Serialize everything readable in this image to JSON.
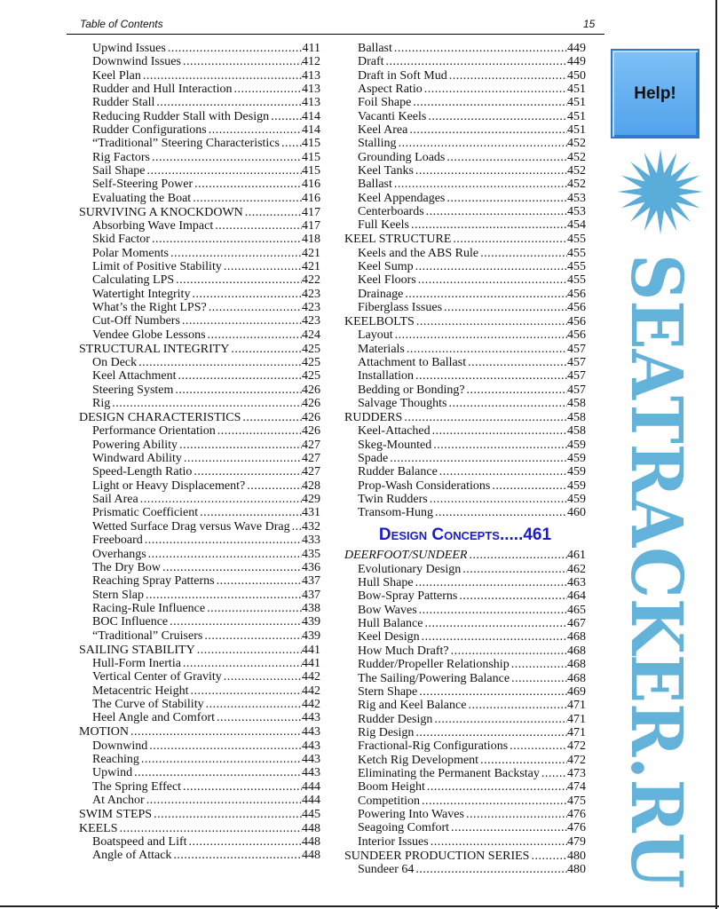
{
  "header": {
    "title": "Table of Contents",
    "page_number": "15"
  },
  "help_button": {
    "label": "Help!"
  },
  "watermark": {
    "text": "SEATRACKER.RU",
    "color": "#3d9fd2"
  },
  "left_column": [
    {
      "level": 1,
      "title": "Upwind Issues",
      "page": "411"
    },
    {
      "level": 1,
      "title": "Downwind Issues",
      "page": "412"
    },
    {
      "level": 1,
      "title": "Keel Plan",
      "page": "413"
    },
    {
      "level": 1,
      "title": "Rudder and Hull Interaction",
      "page": "413"
    },
    {
      "level": 1,
      "title": "Rudder Stall",
      "page": "413"
    },
    {
      "level": 1,
      "title": "Reducing Rudder Stall with Design",
      "page": "414"
    },
    {
      "level": 1,
      "title": "Rudder Configurations",
      "page": "414"
    },
    {
      "level": 1,
      "title": "“Traditional” Steering Characteristics",
      "page": "415"
    },
    {
      "level": 1,
      "title": "Rig Factors",
      "page": "415"
    },
    {
      "level": 1,
      "title": "Sail Shape",
      "page": "415"
    },
    {
      "level": 1,
      "title": "Self-Steering Power",
      "page": "416"
    },
    {
      "level": 1,
      "title": "Evaluating the Boat",
      "page": "416"
    },
    {
      "level": 0,
      "title": "SURVIVING A KNOCKDOWN",
      "page": "417"
    },
    {
      "level": 1,
      "title": "Absorbing Wave Impact",
      "page": "417"
    },
    {
      "level": 1,
      "title": "Skid Factor",
      "page": "418"
    },
    {
      "level": 1,
      "title": "Polar Moments",
      "page": "421"
    },
    {
      "level": 1,
      "title": "Limit of Positive Stability",
      "page": "421"
    },
    {
      "level": 1,
      "title": "Calculating LPS",
      "page": "422"
    },
    {
      "level": 1,
      "title": "Watertight Integrity",
      "page": "423"
    },
    {
      "level": 1,
      "title": "What’s the Right LPS?",
      "page": "423"
    },
    {
      "level": 1,
      "title": "Cut-Off Numbers",
      "page": "423"
    },
    {
      "level": 1,
      "title": "Vendee Globe Lessons",
      "page": "424"
    },
    {
      "level": 0,
      "title": "STRUCTURAL INTEGRITY",
      "page": "425"
    },
    {
      "level": 1,
      "title": "On Deck",
      "page": "425"
    },
    {
      "level": 1,
      "title": "Keel Attachment",
      "page": "425"
    },
    {
      "level": 1,
      "title": "Steering System",
      "page": "426"
    },
    {
      "level": 1,
      "title": "Rig",
      "page": "426"
    },
    {
      "level": 0,
      "title": "DESIGN CHARACTERISTICS",
      "page": "426"
    },
    {
      "level": 1,
      "title": "Performance Orientation",
      "page": "426"
    },
    {
      "level": 1,
      "title": "Powering Ability",
      "page": "427"
    },
    {
      "level": 1,
      "title": "Windward Ability",
      "page": "427"
    },
    {
      "level": 1,
      "title": "Speed-Length Ratio",
      "page": "427"
    },
    {
      "level": 1,
      "title": "Light or Heavy Displacement?",
      "page": "428"
    },
    {
      "level": 1,
      "title": "Sail Area",
      "page": "429"
    },
    {
      "level": 1,
      "title": "Prismatic Coefficient",
      "page": "431"
    },
    {
      "level": 1,
      "title": "Wetted Surface Drag versus Wave Drag",
      "page": "432"
    },
    {
      "level": 1,
      "title": "Freeboard",
      "page": "433"
    },
    {
      "level": 1,
      "title": "Overhangs",
      "page": "435"
    },
    {
      "level": 1,
      "title": "The Dry Bow",
      "page": "436"
    },
    {
      "level": 1,
      "title": "Reaching Spray Patterns",
      "page": "437"
    },
    {
      "level": 1,
      "title": "Stern Slap",
      "page": "437"
    },
    {
      "level": 1,
      "title": "Racing-Rule Influence",
      "page": "438"
    },
    {
      "level": 1,
      "title": "BOC Influence",
      "page": "439"
    },
    {
      "level": 1,
      "title": "“Traditional” Cruisers",
      "page": "439"
    },
    {
      "level": 0,
      "title": "SAILING STABILITY",
      "page": "441"
    },
    {
      "level": 1,
      "title": "Hull-Form Inertia",
      "page": "441"
    },
    {
      "level": 1,
      "title": "Vertical Center of Gravity",
      "page": "442"
    },
    {
      "level": 1,
      "title": "Metacentric Height",
      "page": "442"
    },
    {
      "level": 1,
      "title": "The Curve of Stability",
      "page": "442"
    },
    {
      "level": 1,
      "title": "Heel Angle and Comfort",
      "page": "443"
    },
    {
      "level": 0,
      "title": "MOTION",
      "page": "443"
    },
    {
      "level": 1,
      "title": "Downwind",
      "page": "443"
    },
    {
      "level": 1,
      "title": "Reaching",
      "page": "443"
    },
    {
      "level": 1,
      "title": "Upwind",
      "page": "443"
    },
    {
      "level": 1,
      "title": "The Spring Effect",
      "page": "444"
    },
    {
      "level": 1,
      "title": "At Anchor",
      "page": "444"
    },
    {
      "level": 0,
      "title": "SWIM STEPS",
      "page": "445"
    },
    {
      "level": 0,
      "title": "KEELS",
      "page": "448"
    },
    {
      "level": 1,
      "title": "Boatspeed and Lift",
      "page": "448"
    },
    {
      "level": 1,
      "title": "Angle of Attack",
      "page": "448"
    }
  ],
  "right_column_top": [
    {
      "level": 1,
      "title": "Ballast",
      "page": "449"
    },
    {
      "level": 1,
      "title": "Draft",
      "page": "449"
    },
    {
      "level": 1,
      "title": "Draft in Soft Mud",
      "page": "450"
    },
    {
      "level": 1,
      "title": "Aspect Ratio",
      "page": "451"
    },
    {
      "level": 1,
      "title": "Foil Shape",
      "page": "451"
    },
    {
      "level": 1,
      "title": "Vacanti Keels",
      "page": "451"
    },
    {
      "level": 1,
      "title": "Keel Area",
      "page": "451"
    },
    {
      "level": 1,
      "title": "Stalling",
      "page": "452"
    },
    {
      "level": 1,
      "title": "Grounding Loads",
      "page": "452"
    },
    {
      "level": 1,
      "title": "Keel Tanks",
      "page": "452"
    },
    {
      "level": 1,
      "title": "Ballast",
      "page": "452"
    },
    {
      "level": 1,
      "title": "Keel Appendages",
      "page": "453"
    },
    {
      "level": 1,
      "title": "Centerboards",
      "page": "453"
    },
    {
      "level": 1,
      "title": "Full Keels",
      "page": "454"
    },
    {
      "level": 0,
      "title": "KEEL STRUCTURE",
      "page": "455"
    },
    {
      "level": 1,
      "title": "Keels and the ABS Rule",
      "page": "455"
    },
    {
      "level": 1,
      "title": "Keel Sump",
      "page": "455"
    },
    {
      "level": 1,
      "title": "Keel Floors",
      "page": "455"
    },
    {
      "level": 1,
      "title": "Drainage",
      "page": "456"
    },
    {
      "level": 1,
      "title": "Fiberglass Issues",
      "page": "456"
    },
    {
      "level": 0,
      "title": "KEELBOLTS",
      "page": "456"
    },
    {
      "level": 1,
      "title": "Layout",
      "page": "456"
    },
    {
      "level": 1,
      "title": "Materials",
      "page": "457"
    },
    {
      "level": 1,
      "title": "Attachment to Ballast",
      "page": "457"
    },
    {
      "level": 1,
      "title": "Installation",
      "page": "457"
    },
    {
      "level": 1,
      "title": "Bedding or Bonding?",
      "page": "457"
    },
    {
      "level": 1,
      "title": "Salvage Thoughts",
      "page": "458"
    },
    {
      "level": 0,
      "title": "RUDDERS",
      "page": "458"
    },
    {
      "level": 1,
      "title": "Keel-Attached",
      "page": "458"
    },
    {
      "level": 1,
      "title": "Skeg-Mounted",
      "page": "459"
    },
    {
      "level": 1,
      "title": "Spade",
      "page": "459"
    },
    {
      "level": 1,
      "title": "Rudder Balance",
      "page": "459"
    },
    {
      "level": 1,
      "title": "Prop-Wash Considerations",
      "page": "459"
    },
    {
      "level": 1,
      "title": "Twin Rudders",
      "page": "459"
    },
    {
      "level": 1,
      "title": "Transom-Hung",
      "page": "460"
    }
  ],
  "section": {
    "title": "Design Concepts",
    "leader": ".....",
    "page": "461",
    "color": "#1a1ad0"
  },
  "right_column_bottom": [
    {
      "level": 0,
      "italic": true,
      "title": "DEERFOOT/SUNDEER",
      "page": "461"
    },
    {
      "level": 1,
      "title": "Evolutionary Design",
      "page": "462"
    },
    {
      "level": 1,
      "title": "Hull Shape",
      "page": "463"
    },
    {
      "level": 1,
      "title": "Bow-Spray Patterns",
      "page": "464"
    },
    {
      "level": 1,
      "title": "Bow Waves",
      "page": "465"
    },
    {
      "level": 1,
      "title": "Hull Balance",
      "page": "467"
    },
    {
      "level": 1,
      "title": "Keel Design",
      "page": "468"
    },
    {
      "level": 1,
      "title": "How Much Draft?",
      "page": "468"
    },
    {
      "level": 1,
      "title": "Rudder/Propeller Relationship",
      "page": "468"
    },
    {
      "level": 1,
      "title": "The Sailing/Powering Balance",
      "page": "468"
    },
    {
      "level": 1,
      "title": "Stern Shape",
      "page": "469"
    },
    {
      "level": 1,
      "title": "Rig and Keel Balance",
      "page": "471"
    },
    {
      "level": 1,
      "title": "Rudder Design",
      "page": "471"
    },
    {
      "level": 1,
      "title": "Rig Design",
      "page": "471"
    },
    {
      "level": 1,
      "title": "Fractional-Rig Configurations",
      "page": "472"
    },
    {
      "level": 1,
      "title": "Ketch Rig Development",
      "page": "472"
    },
    {
      "level": 1,
      "title": "Eliminating the Permanent Backstay",
      "page": "473"
    },
    {
      "level": 1,
      "title": "Boom Height",
      "page": "474"
    },
    {
      "level": 1,
      "title": "Competition",
      "page": "475"
    },
    {
      "level": 1,
      "title": "Powering Into Waves",
      "page": "476"
    },
    {
      "level": 1,
      "title": "Seagoing Comfort",
      "page": "476"
    },
    {
      "level": 1,
      "title": "Interior Issues",
      "page": "479"
    },
    {
      "level": 0,
      "title": "SUNDEER PRODUCTION SERIES",
      "page": "480"
    },
    {
      "level": 1,
      "title": "Sundeer 64",
      "page": "480"
    }
  ]
}
